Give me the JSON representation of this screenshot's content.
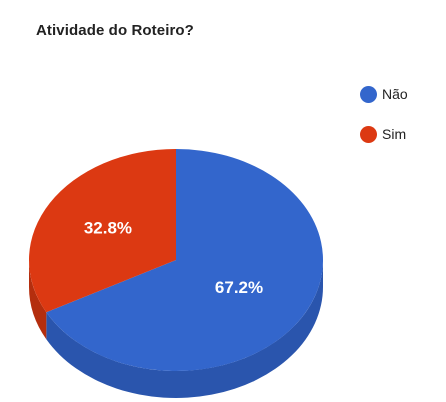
{
  "chart_data": {
    "type": "pie",
    "title": "Atividade do Roteiro?",
    "legend_position": "top-right",
    "three_d": true,
    "slices": [
      {
        "label": "Não",
        "value": 67.2,
        "display": "67.2%",
        "color": "#3366cc",
        "side_color": "#2a55ad"
      },
      {
        "label": "Sim",
        "value": 32.8,
        "display": "32.8%",
        "color": "#dc3912",
        "side_color": "#b42e0e"
      }
    ]
  }
}
